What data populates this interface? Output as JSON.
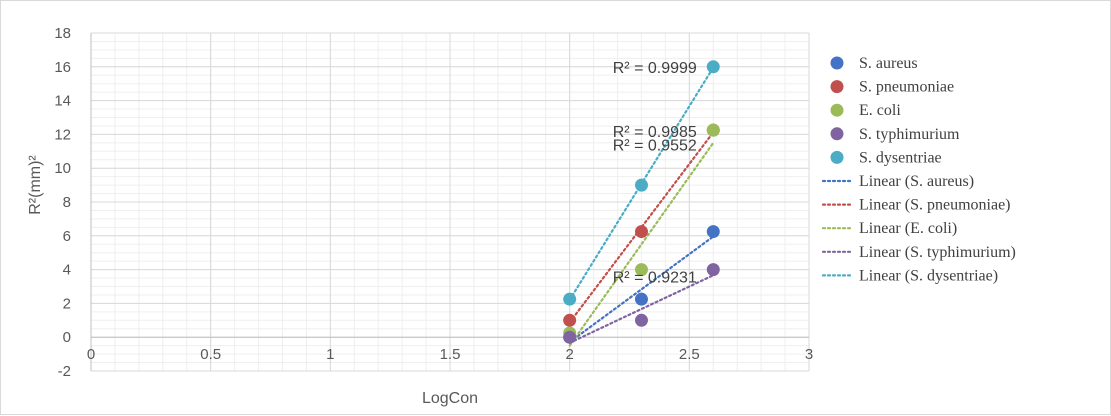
{
  "chart_data": {
    "type": "scatter",
    "title": "",
    "xlabel": "LogCon",
    "ylabel": "R²(mm)²",
    "xlim": [
      0,
      3
    ],
    "ylim": [
      -2,
      18
    ],
    "x_ticks": [
      0,
      0.5,
      1,
      1.5,
      2,
      2.5,
      3
    ],
    "x_tick_labels": [
      "0",
      "0.5",
      "1",
      "1.5",
      "2",
      "2.5",
      "3"
    ],
    "y_ticks": [
      -2,
      0,
      2,
      4,
      6,
      8,
      10,
      12,
      14,
      16,
      18
    ],
    "y_tick_labels": [
      "-2",
      "0",
      "2",
      "4",
      "6",
      "8",
      "10",
      "12",
      "14",
      "16",
      "18"
    ],
    "grid": true,
    "legend_position": "right",
    "series": [
      {
        "name": "S. aureus",
        "color": "#4472C4",
        "x": [
          2,
          2.3,
          2.6
        ],
        "y": [
          0,
          2.25,
          6.25
        ]
      },
      {
        "name": "S. pneumoniae",
        "color": "#C0504D",
        "x": [
          2,
          2.3,
          2.6
        ],
        "y": [
          1,
          6.25,
          12.25
        ]
      },
      {
        "name": "E. coli",
        "color": "#9BBB59",
        "x": [
          2,
          2.3,
          2.6
        ],
        "y": [
          0.25,
          4,
          12.25
        ]
      },
      {
        "name": "S. typhimurium",
        "color": "#8064A2",
        "x": [
          2,
          2.3,
          2.6
        ],
        "y": [
          0,
          1,
          4
        ]
      },
      {
        "name": "S. dysentriae",
        "color": "#4BACC6",
        "x": [
          2,
          2.3,
          2.6
        ],
        "y": [
          2.25,
          9,
          16
        ]
      }
    ],
    "trendlines": [
      {
        "name": "Linear (S. aureus)",
        "color": "#4472C4"
      },
      {
        "name": "Linear (S. pneumoniae)",
        "color": "#C0504D"
      },
      {
        "name": "Linear (E. coli)",
        "color": "#9BBB59"
      },
      {
        "name": "Linear (S. typhimurium)",
        "color": "#8064A2"
      },
      {
        "name": "Linear (S. dysentriae)",
        "color": "#4BACC6"
      }
    ],
    "annotations": [
      {
        "text": "R² = 0.9999",
        "x": 2.18,
        "y": 16
      },
      {
        "text": "R² = 0.9985",
        "x": 2.18,
        "y": 12.2
      },
      {
        "text": "R² = 0.9552",
        "x": 2.18,
        "y": 11.4
      },
      {
        "text": "R² = 0.9231",
        "x": 2.18,
        "y": 3.6
      }
    ]
  }
}
